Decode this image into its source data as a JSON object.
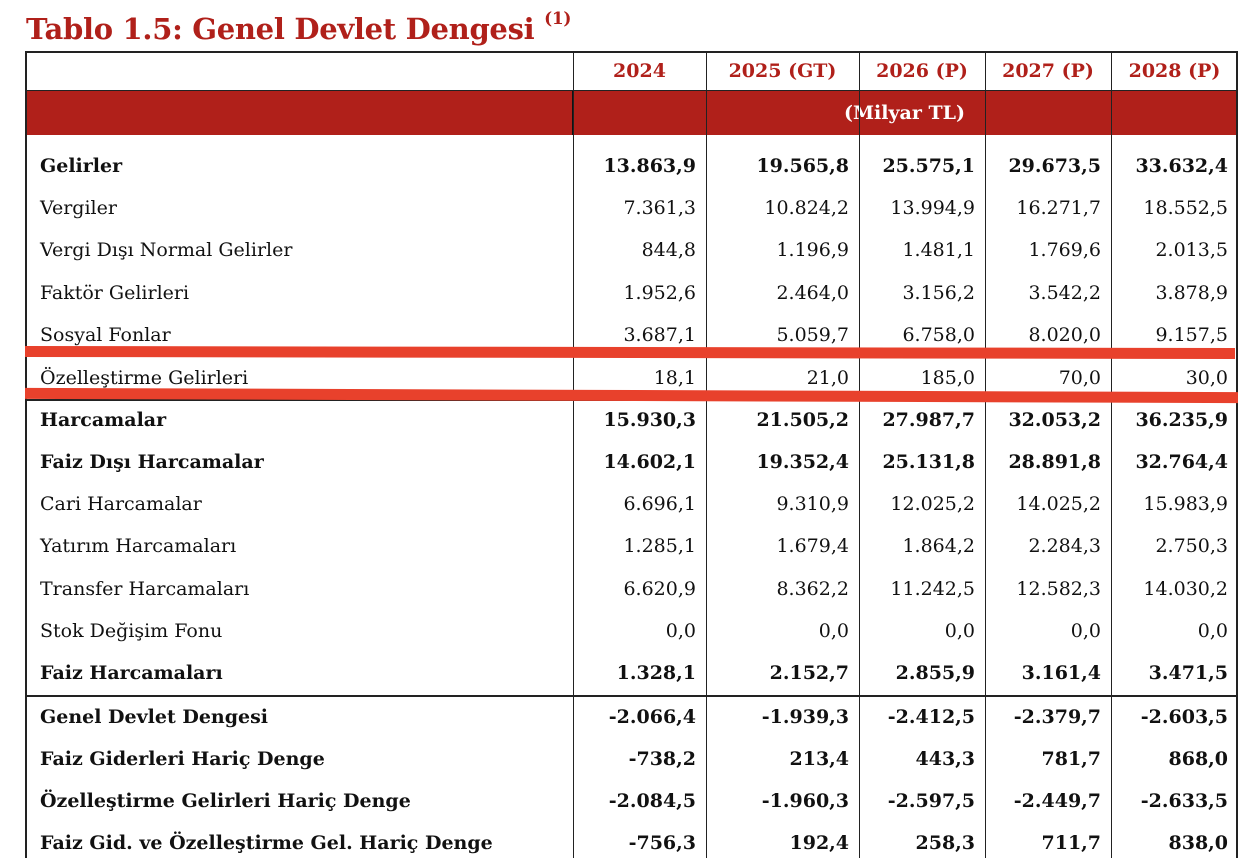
{
  "title": "Tablo 1.5: Genel Devlet Dengesi",
  "title_note": "(1)",
  "unit": "(Milyar TL)",
  "columns": [
    "2024",
    "2025 (GT)",
    "2026 (P)",
    "2027 (P)",
    "2028 (P)"
  ],
  "colors": {
    "accent": "#b0201a",
    "highlight": "#e8412c"
  },
  "rows": [
    {
      "label": "Gelirler",
      "bold": true,
      "values": [
        "13.863,9",
        "19.565,8",
        "25.575,1",
        "29.673,5",
        "33.632,4"
      ]
    },
    {
      "label": "Vergiler",
      "bold": false,
      "values": [
        "7.361,3",
        "10.824,2",
        "13.994,9",
        "16.271,7",
        "18.552,5"
      ]
    },
    {
      "label": "Vergi Dışı Normal Gelirler",
      "bold": false,
      "values": [
        "844,8",
        "1.196,9",
        "1.481,1",
        "1.769,6",
        "2.013,5"
      ]
    },
    {
      "label": "Faktör Gelirleri",
      "bold": false,
      "values": [
        "1.952,6",
        "2.464,0",
        "3.156,2",
        "3.542,2",
        "3.878,9"
      ]
    },
    {
      "label": "Sosyal Fonlar",
      "bold": false,
      "values": [
        "3.687,1",
        "5.059,7",
        "6.758,0",
        "8.020,0",
        "9.157,5"
      ]
    },
    {
      "label": "Özelleştirme Gelirleri",
      "bold": false,
      "values": [
        "18,1",
        "21,0",
        "185,0",
        "70,0",
        "30,0"
      ]
    },
    {
      "label": "Harcamalar",
      "bold": true,
      "values": [
        "15.930,3",
        "21.505,2",
        "27.987,7",
        "32.053,2",
        "36.235,9"
      ]
    },
    {
      "label": "Faiz Dışı Harcamalar",
      "bold": true,
      "values": [
        "14.602,1",
        "19.352,4",
        "25.131,8",
        "28.891,8",
        "32.764,4"
      ]
    },
    {
      "label": "Cari Harcamalar",
      "bold": false,
      "values": [
        "6.696,1",
        "9.310,9",
        "12.025,2",
        "14.025,2",
        "15.983,9"
      ]
    },
    {
      "label": "Yatırım Harcamaları",
      "bold": false,
      "values": [
        "1.285,1",
        "1.679,4",
        "1.864,2",
        "2.284,3",
        "2.750,3"
      ]
    },
    {
      "label": "Transfer Harcamaları",
      "bold": false,
      "values": [
        "6.620,9",
        "8.362,2",
        "11.242,5",
        "12.582,3",
        "14.030,2"
      ]
    },
    {
      "label": "Stok Değişim Fonu",
      "bold": false,
      "values": [
        "0,0",
        "0,0",
        "0,0",
        "0,0",
        "0,0"
      ]
    },
    {
      "label": "Faiz Harcamaları",
      "bold": true,
      "values": [
        "1.328,1",
        "2.152,7",
        "2.855,9",
        "3.161,4",
        "3.471,5"
      ]
    },
    {
      "label": "Genel Devlet Dengesi",
      "bold": true,
      "values": [
        "-2.066,4",
        "-1.939,3",
        "-2.412,5",
        "-2.379,7",
        "-2.603,5"
      ]
    },
    {
      "label": "Faiz Giderleri Hariç Denge",
      "bold": true,
      "values": [
        "-738,2",
        "213,4",
        "443,3",
        "781,7",
        "868,0"
      ]
    },
    {
      "label": "Özelleştirme Gelirleri Hariç Denge",
      "bold": true,
      "values": [
        "-2.084,5",
        "-1.960,3",
        "-2.597,5",
        "-2.449,7",
        "-2.633,5"
      ]
    },
    {
      "label": "Faiz Gid. ve Özelleştirme Gel. Hariç Denge",
      "bold": true,
      "values": [
        "-756,3",
        "192,4",
        "258,3",
        "711,7",
        "838,0"
      ]
    }
  ]
}
